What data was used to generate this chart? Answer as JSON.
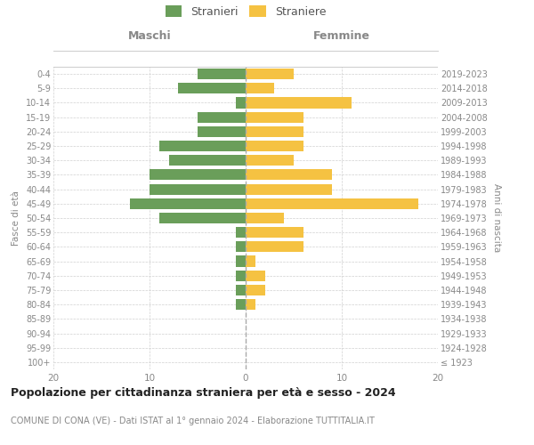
{
  "age_groups": [
    "100+",
    "95-99",
    "90-94",
    "85-89",
    "80-84",
    "75-79",
    "70-74",
    "65-69",
    "60-64",
    "55-59",
    "50-54",
    "45-49",
    "40-44",
    "35-39",
    "30-34",
    "25-29",
    "20-24",
    "15-19",
    "10-14",
    "5-9",
    "0-4"
  ],
  "birth_years": [
    "≤ 1923",
    "1924-1928",
    "1929-1933",
    "1934-1938",
    "1939-1943",
    "1944-1948",
    "1949-1953",
    "1954-1958",
    "1959-1963",
    "1964-1968",
    "1969-1973",
    "1974-1978",
    "1979-1983",
    "1984-1988",
    "1989-1993",
    "1994-1998",
    "1999-2003",
    "2004-2008",
    "2009-2013",
    "2014-2018",
    "2019-2023"
  ],
  "maschi": [
    0,
    0,
    0,
    0,
    1,
    1,
    1,
    1,
    1,
    1,
    9,
    12,
    10,
    10,
    8,
    9,
    5,
    5,
    1,
    7,
    5
  ],
  "femmine": [
    0,
    0,
    0,
    0,
    1,
    2,
    2,
    1,
    6,
    6,
    4,
    18,
    9,
    9,
    5,
    6,
    6,
    6,
    11,
    3,
    5
  ],
  "maschi_color": "#6a9e5a",
  "femmine_color": "#f5c242",
  "title": "Popolazione per cittadinanza straniera per età e sesso - 2024",
  "subtitle": "COMUNE DI CONA (VE) - Dati ISTAT al 1° gennaio 2024 - Elaborazione TUTTITALIA.IT",
  "legend_maschi": "Stranieri",
  "legend_femmine": "Straniere",
  "header_left": "Maschi",
  "header_right": "Femmine",
  "ylabel_left": "Fasce di età",
  "ylabel_right": "Anni di nascita",
  "xlim": 20,
  "background_color": "#ffffff",
  "grid_color": "#d0d0d0"
}
